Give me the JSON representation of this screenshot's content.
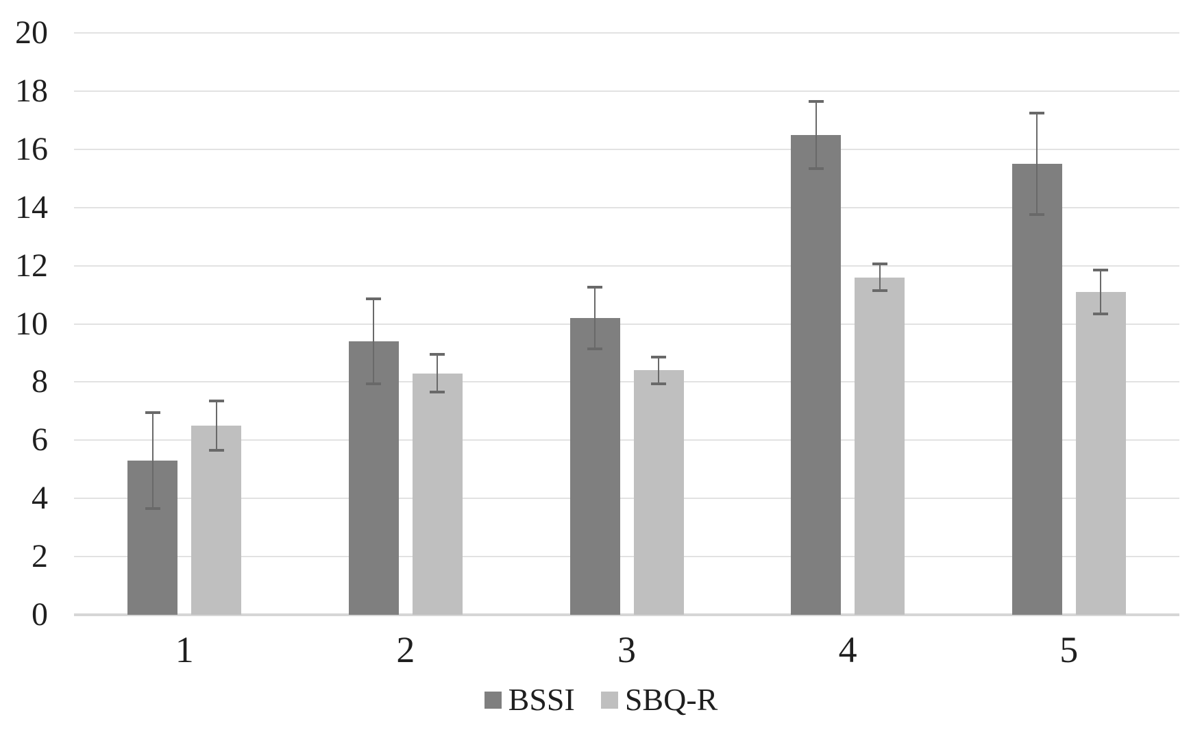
{
  "chart_data": {
    "type": "bar",
    "title": "",
    "xlabel": "",
    "ylabel": "",
    "categories": [
      "1",
      "2",
      "3",
      "4",
      "5"
    ],
    "series": [
      {
        "name": "BSSI",
        "color": "#7f7f7f",
        "values": [
          5.3,
          9.4,
          10.2,
          16.5,
          15.5
        ],
        "errors": [
          1.7,
          1.5,
          1.1,
          1.2,
          1.8
        ]
      },
      {
        "name": "SBQ-R",
        "color": "#bfbfbf",
        "values": [
          6.5,
          8.3,
          8.4,
          11.6,
          11.1
        ],
        "errors": [
          0.9,
          0.7,
          0.5,
          0.5,
          0.8
        ]
      }
    ],
    "ylim": [
      0,
      20
    ],
    "yticks": [
      0,
      2,
      4,
      6,
      8,
      10,
      12,
      14,
      16,
      18,
      20
    ],
    "grid": true,
    "error_bars": true,
    "error_bar_color": "#696969",
    "legend_position": "bottom"
  },
  "colors": {
    "background": "#ffffff",
    "gridline": "#e2e2e2",
    "baseline": "#d6d6d6",
    "text": "#1f1f1f"
  }
}
